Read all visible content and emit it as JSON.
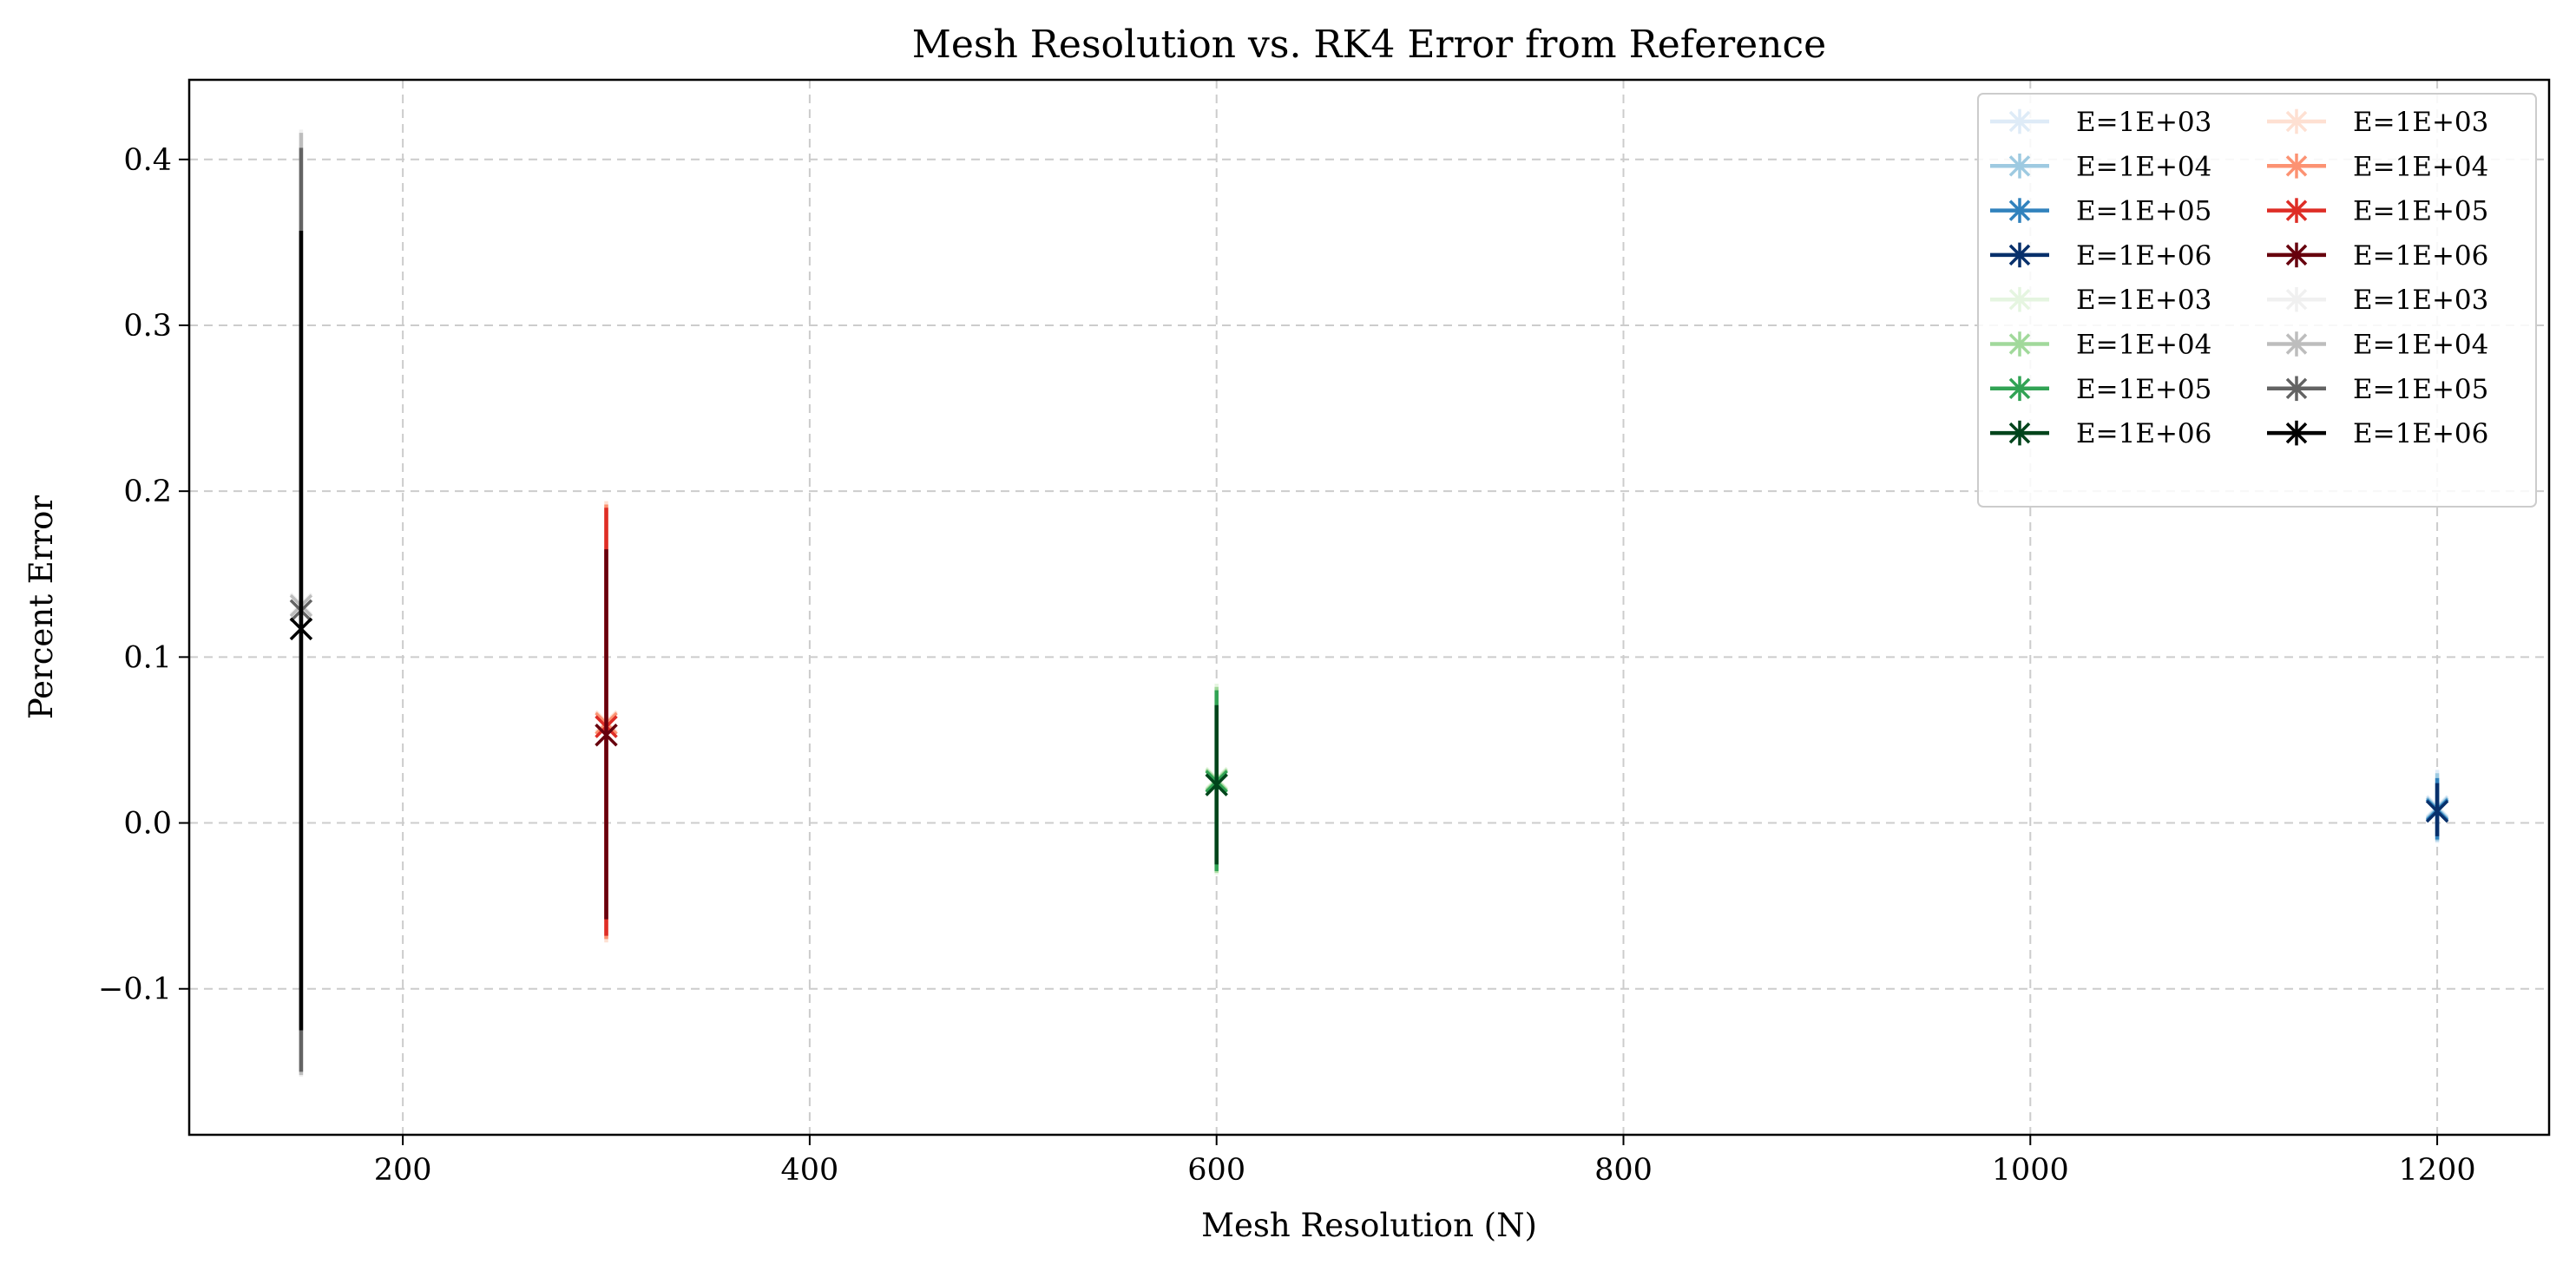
{
  "chart_data": {
    "type": "scatter",
    "title": "Mesh Resolution vs. RK4 Error from Reference",
    "xlabel": "Mesh Resolution (N)",
    "ylabel": "Percent Error",
    "xlim": [
      95,
      1255
    ],
    "ylim": [
      -0.188,
      0.448
    ],
    "xticks": [
      200,
      400,
      600,
      800,
      1000,
      1200
    ],
    "xtick_labels": [
      "200",
      "400",
      "600",
      "800",
      "1000",
      "1200"
    ],
    "yticks": [
      -0.1,
      0.0,
      0.1,
      0.2,
      0.3,
      0.4
    ],
    "ytick_labels": [
      "−0.1",
      "0.0",
      "0.1",
      "0.2",
      "0.3",
      "0.4"
    ],
    "grid": true,
    "legend_placement": "top-right",
    "legend_columns": 2,
    "marker": "x-star",
    "series": [
      {
        "name": "E=1E+03",
        "color": "#deebf7",
        "x": 1200,
        "y": 0.01,
        "err_low": -0.012,
        "err_high": 0.032
      },
      {
        "name": "E=1E+04",
        "color": "#9ecae1",
        "x": 1200,
        "y": 0.009,
        "err_low": -0.011,
        "err_high": 0.03
      },
      {
        "name": "E=1E+05",
        "color": "#3182bd",
        "x": 1200,
        "y": 0.008,
        "err_low": -0.01,
        "err_high": 0.027
      },
      {
        "name": "E=1E+06",
        "color": "#08306b",
        "x": 1200,
        "y": 0.007,
        "err_low": -0.008,
        "err_high": 0.024
      },
      {
        "name": "E=1E+03",
        "color": "#fee0d2",
        "x": 300,
        "y": 0.061,
        "err_low": -0.072,
        "err_high": 0.194
      },
      {
        "name": "E=1E+04",
        "color": "#fc9272",
        "x": 300,
        "y": 0.06,
        "err_low": -0.07,
        "err_high": 0.192
      },
      {
        "name": "E=1E+05",
        "color": "#de2d26",
        "x": 300,
        "y": 0.058,
        "err_low": -0.068,
        "err_high": 0.19
      },
      {
        "name": "E=1E+06",
        "color": "#67000d",
        "x": 300,
        "y": 0.053,
        "err_low": -0.058,
        "err_high": 0.165
      },
      {
        "name": "E=1E+03",
        "color": "#e5f5e0",
        "x": 600,
        "y": 0.027,
        "err_low": -0.031,
        "err_high": 0.084
      },
      {
        "name": "E=1E+04",
        "color": "#a1d99b",
        "x": 600,
        "y": 0.026,
        "err_low": -0.03,
        "err_high": 0.082
      },
      {
        "name": "E=1E+05",
        "color": "#31a354",
        "x": 600,
        "y": 0.025,
        "err_low": -0.029,
        "err_high": 0.08
      },
      {
        "name": "E=1E+06",
        "color": "#00441b",
        "x": 600,
        "y": 0.023,
        "err_low": -0.025,
        "err_high": 0.071
      },
      {
        "name": "E=1E+03",
        "color": "#f0f0f0",
        "x": 150,
        "y": 0.132,
        "err_low": -0.153,
        "err_high": 0.418
      },
      {
        "name": "E=1E+04",
        "color": "#bdbdbd",
        "x": 150,
        "y": 0.131,
        "err_low": -0.152,
        "err_high": 0.416
      },
      {
        "name": "E=1E+05",
        "color": "#636363",
        "x": 150,
        "y": 0.128,
        "err_low": -0.15,
        "err_high": 0.407
      },
      {
        "name": "E=1E+06",
        "color": "#000000",
        "x": 150,
        "y": 0.117,
        "err_low": -0.125,
        "err_high": 0.357
      }
    ]
  }
}
